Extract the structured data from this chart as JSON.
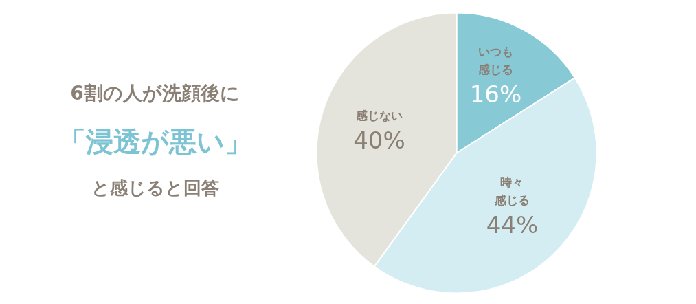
{
  "chart_data": {
    "type": "pie",
    "title": "6割の人が洗顔後に",
    "subtitle": "「浸透が悪い」",
    "annotations": [
      "と感じると回答"
    ],
    "categories": [
      "いつも感じる",
      "時々感じる",
      "感じない"
    ],
    "values": [
      16,
      44,
      40
    ],
    "colors": [
      "#88c9d6",
      "#d3edf2",
      "#e5e4dc"
    ],
    "value_labels": [
      "16%",
      "44%",
      "40%"
    ]
  }
}
